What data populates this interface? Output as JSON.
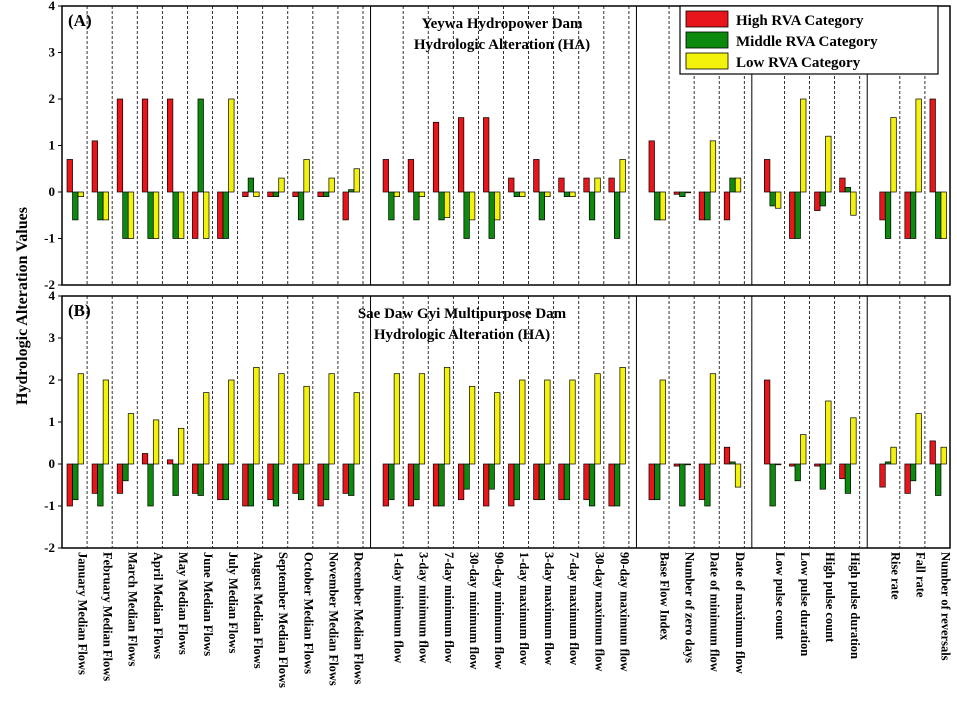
{
  "ylabel": "Hydrologic Alteration Values",
  "legend": [
    {
      "name": "High RVA Category",
      "color": "#e8161b"
    },
    {
      "name": "Middle RVA Category",
      "color": "#0d8a0d"
    },
    {
      "name": "Low RVA Category",
      "color": "#f2f20a"
    }
  ],
  "categories": [
    "January Median Flows",
    "February Median Flows",
    "March Median Flows",
    "April Median Flows",
    "May Median Flows",
    "June Median Flows",
    "July Median Flows",
    "August Median Flows",
    "September Median Flows",
    "October Median Flows",
    "November Median Flows",
    "December Median Flows",
    "1-day minimum flow",
    "3-day minimum flow",
    "7-day minimum flow",
    "30-day minimum flow",
    "90-day minimum flow",
    "1-day maximum flow",
    "3-day maximum flow",
    "7-day maximum flow",
    "30-day maximum flow",
    "90-day maximum flow",
    "Base Flow Index",
    "Number of zero days",
    "Date of minimum flow",
    "Date of maximum flow",
    "Low pulse count",
    "Low pulse duration",
    "High pulse count",
    "High pulse duration",
    "Rise rate",
    "Fall rate",
    "Number of reversals"
  ],
  "chart_data": [
    {
      "type": "bar",
      "panel": "(A)",
      "title": "Yeywa Hydropower Dam",
      "subtitle": "Hydrologic Alteration (HA)",
      "ylim": [
        -2,
        4
      ],
      "yticks": [
        -2,
        -1,
        0,
        1,
        2,
        3,
        4
      ],
      "series": [
        {
          "name": "High RVA Category",
          "values": [
            0.7,
            1.1,
            2.0,
            2.0,
            2.0,
            -1.0,
            -1.0,
            -0.1,
            -0.1,
            -0.1,
            -0.1,
            -0.6,
            0.7,
            0.7,
            1.5,
            1.6,
            1.6,
            0.3,
            0.7,
            0.3,
            0.3,
            0.3,
            1.1,
            -0.05,
            -0.6,
            -0.6,
            0.7,
            -1.0,
            -0.4,
            0.3,
            -0.6,
            -1.0,
            2.0
          ]
        },
        {
          "name": "Middle RVA Category",
          "values": [
            -0.6,
            -0.6,
            -1.0,
            -1.0,
            -1.0,
            2.0,
            -1.0,
            0.3,
            -0.1,
            -0.6,
            -0.1,
            0.05,
            -0.6,
            -0.6,
            -0.6,
            -1.0,
            -1.0,
            -0.1,
            -0.6,
            -0.1,
            -0.6,
            -1.0,
            -0.6,
            -0.1,
            -0.6,
            0.3,
            -0.3,
            -1.0,
            -0.3,
            0.1,
            -1.0,
            -1.0,
            -1.0
          ]
        },
        {
          "name": "Low RVA Category",
          "values": [
            -0.1,
            -0.6,
            -1.0,
            -1.0,
            -1.0,
            -1.0,
            2.0,
            -0.1,
            0.3,
            0.7,
            0.3,
            0.5,
            -0.1,
            -0.1,
            -0.55,
            -0.6,
            -0.6,
            -0.1,
            -0.1,
            -0.1,
            0.3,
            0.7,
            -0.6,
            0.0,
            1.1,
            0.3,
            -0.35,
            2.0,
            1.2,
            -0.5,
            1.6,
            2.0,
            -1.0
          ]
        }
      ]
    },
    {
      "type": "bar",
      "panel": "(B)",
      "title": "Sae Daw Gyi Multipurpose Dam",
      "subtitle": "Hydrologic Alteration (HA)",
      "ylim": [
        -2,
        4
      ],
      "yticks": [
        -2,
        -1,
        0,
        1,
        2,
        3,
        4
      ],
      "series": [
        {
          "name": "High RVA Category",
          "values": [
            -1.0,
            -0.7,
            -0.7,
            0.25,
            0.1,
            -0.7,
            -0.85,
            -1.0,
            -0.85,
            -0.7,
            -1.0,
            -0.7,
            -1.0,
            -1.0,
            -1.0,
            -0.85,
            -1.0,
            -1.0,
            -0.85,
            -0.85,
            -0.85,
            -1.0,
            -0.85,
            -0.05,
            -0.85,
            0.4,
            2.0,
            -0.05,
            -0.05,
            -0.35,
            -0.55,
            -0.7,
            0.55
          ]
        },
        {
          "name": "Middle RVA Category",
          "values": [
            -0.85,
            -1.0,
            -0.4,
            -1.0,
            -0.75,
            -0.75,
            -0.85,
            -1.0,
            -1.0,
            -0.85,
            -0.85,
            -0.75,
            -0.85,
            -0.85,
            -1.0,
            -0.6,
            -0.6,
            -0.85,
            -0.85,
            -0.85,
            -1.0,
            -1.0,
            -0.85,
            -1.0,
            -1.0,
            0.05,
            -1.0,
            -0.4,
            -0.6,
            -0.7,
            0.05,
            -0.4,
            -0.75
          ]
        },
        {
          "name": "Low RVA Category",
          "values": [
            2.15,
            2.0,
            1.2,
            1.05,
            0.85,
            1.7,
            2.0,
            2.3,
            2.15,
            1.85,
            2.15,
            1.7,
            2.15,
            2.15,
            2.3,
            1.85,
            1.7,
            2.0,
            2.0,
            2.0,
            2.15,
            2.3,
            2.0,
            0.0,
            2.15,
            -0.55,
            0.0,
            0.7,
            1.5,
            1.1,
            0.4,
            1.2,
            0.4
          ]
        }
      ]
    }
  ]
}
